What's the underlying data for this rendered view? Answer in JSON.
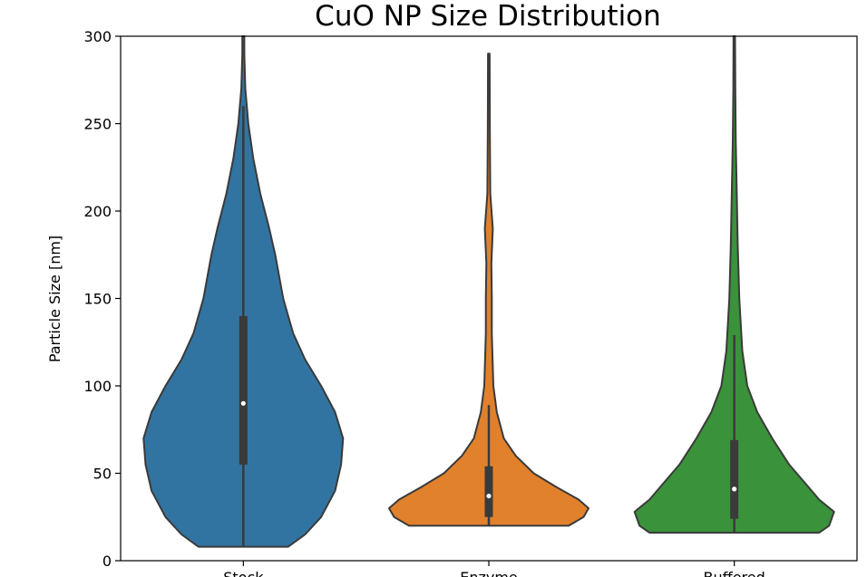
{
  "chart_data": {
    "type": "violin",
    "title": "CuO NP Size Distribution",
    "xlabel": "",
    "ylabel": "Particle Size [nm]",
    "ylim": [
      0,
      300
    ],
    "yticks": [
      0,
      50,
      100,
      150,
      200,
      250,
      300
    ],
    "grid": false,
    "legend": "none",
    "categories": [
      "Stock",
      "Enzyme",
      "Buffered"
    ],
    "colors": [
      "#3274a1",
      "#e1812c",
      "#3a923a"
    ],
    "series": [
      {
        "category": "Stock",
        "min": 8,
        "max": 300,
        "median": 90,
        "q1": 55,
        "q3": 140,
        "whisker_low": 8,
        "whisker_high": 260,
        "density": [
          [
            8,
            0.45
          ],
          [
            15,
            0.62
          ],
          [
            25,
            0.78
          ],
          [
            40,
            0.92
          ],
          [
            55,
            0.98
          ],
          [
            70,
            1.0
          ],
          [
            85,
            0.92
          ],
          [
            100,
            0.78
          ],
          [
            115,
            0.62
          ],
          [
            130,
            0.5
          ],
          [
            150,
            0.4
          ],
          [
            175,
            0.32
          ],
          [
            190,
            0.26
          ],
          [
            210,
            0.17
          ],
          [
            230,
            0.1
          ],
          [
            250,
            0.05
          ],
          [
            270,
            0.02
          ],
          [
            290,
            0.01
          ],
          [
            300,
            0.01
          ]
        ]
      },
      {
        "category": "Enzyme",
        "min": 20,
        "max": 290,
        "median": 37,
        "q1": 25,
        "q3": 54,
        "whisker_low": 20,
        "whisker_high": 89,
        "density": [
          [
            20,
            0.8
          ],
          [
            25,
            0.95
          ],
          [
            30,
            1.0
          ],
          [
            35,
            0.9
          ],
          [
            42,
            0.68
          ],
          [
            50,
            0.45
          ],
          [
            60,
            0.27
          ],
          [
            70,
            0.15
          ],
          [
            85,
            0.08
          ],
          [
            100,
            0.045
          ],
          [
            130,
            0.03
          ],
          [
            150,
            0.03
          ],
          [
            170,
            0.025
          ],
          [
            190,
            0.04
          ],
          [
            210,
            0.015
          ],
          [
            250,
            0.01
          ],
          [
            290,
            0.008
          ]
        ]
      },
      {
        "category": "Buffered",
        "min": 16,
        "max": 300,
        "median": 41,
        "q1": 24,
        "q3": 69,
        "whisker_low": 16,
        "whisker_high": 129,
        "density": [
          [
            16,
            0.85
          ],
          [
            20,
            0.95
          ],
          [
            28,
            1.0
          ],
          [
            35,
            0.85
          ],
          [
            45,
            0.7
          ],
          [
            55,
            0.55
          ],
          [
            70,
            0.38
          ],
          [
            85,
            0.23
          ],
          [
            100,
            0.13
          ],
          [
            120,
            0.08
          ],
          [
            150,
            0.05
          ],
          [
            180,
            0.035
          ],
          [
            210,
            0.025
          ],
          [
            240,
            0.015
          ],
          [
            270,
            0.01
          ],
          [
            300,
            0.008
          ]
        ]
      }
    ]
  }
}
